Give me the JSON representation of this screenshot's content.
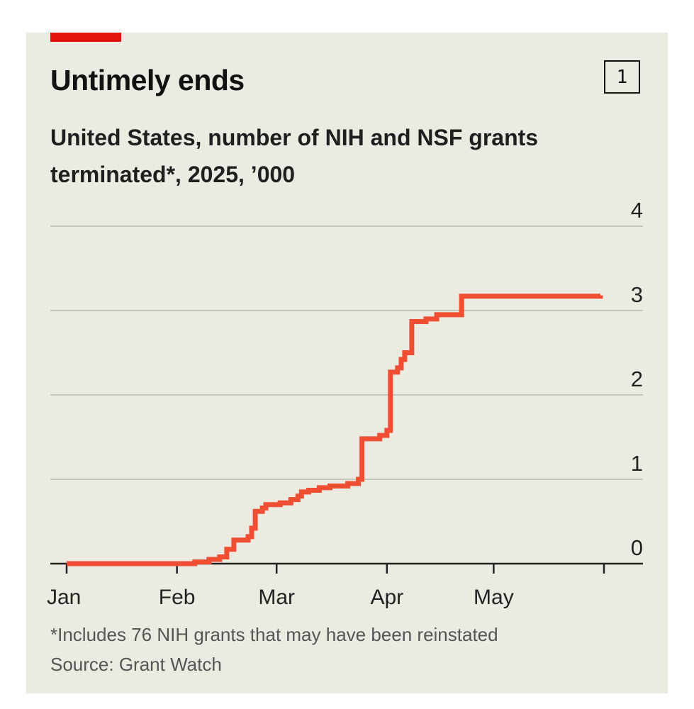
{
  "colors": {
    "accent": "#e3120b",
    "line": "#f04e33",
    "grid": "#c6c5be",
    "axis": "#222222",
    "background": "#ecebe2"
  },
  "header": {
    "title": "Untimely ends",
    "chart_number": "1",
    "subtitle": "United States, number of NIH and NSF grants terminated*, 2025, ’000"
  },
  "footer": {
    "footnote": "*Includes 76 NIH grants that may have been reinstated",
    "source": "Source: Grant Watch"
  },
  "chart_data": {
    "type": "line",
    "step": true,
    "title": "Untimely ends",
    "subtitle": "United States, number of NIH and NSF grants terminated*, 2025, ’000",
    "xlabel": "",
    "ylabel": "",
    "x_tick_labels": [
      "Jan",
      "Feb",
      "Mar",
      "Apr",
      "May"
    ],
    "x_tick_dates": [
      "2025-01-01",
      "2025-02-01",
      "2025-03-01",
      "2025-04-01",
      "2025-05-01",
      "2025-06-01"
    ],
    "xlim": [
      "2025-01-01",
      "2025-06-01"
    ],
    "y_ticks": [
      0,
      1,
      2,
      3,
      4
    ],
    "y_tick_labels": [
      "0",
      "1",
      "2",
      "3",
      "4"
    ],
    "ylim": [
      0,
      4
    ],
    "grid": true,
    "y_axis_position": "right",
    "series": [
      {
        "values": [
          [
            "2025-01-01",
            0
          ],
          [
            "2025-01-30",
            0
          ],
          [
            "2025-02-06",
            0.02
          ],
          [
            "2025-02-10",
            0.05
          ],
          [
            "2025-02-13",
            0.08
          ],
          [
            "2025-02-15",
            0.17
          ],
          [
            "2025-02-17",
            0.28
          ],
          [
            "2025-02-21",
            0.32
          ],
          [
            "2025-02-22",
            0.42
          ],
          [
            "2025-02-23",
            0.62
          ],
          [
            "2025-02-25",
            0.66
          ],
          [
            "2025-02-26",
            0.7
          ],
          [
            "2025-03-02",
            0.72
          ],
          [
            "2025-03-05",
            0.76
          ],
          [
            "2025-03-07",
            0.8
          ],
          [
            "2025-03-08",
            0.85
          ],
          [
            "2025-03-10",
            0.87
          ],
          [
            "2025-03-13",
            0.9
          ],
          [
            "2025-03-16",
            0.92
          ],
          [
            "2025-03-21",
            0.95
          ],
          [
            "2025-03-24",
            1.0
          ],
          [
            "2025-03-25",
            1.48
          ],
          [
            "2025-03-30",
            1.52
          ],
          [
            "2025-04-01",
            1.58
          ],
          [
            "2025-04-02",
            2.27
          ],
          [
            "2025-04-04",
            2.32
          ],
          [
            "2025-04-05",
            2.42
          ],
          [
            "2025-04-06",
            2.5
          ],
          [
            "2025-04-08",
            2.87
          ],
          [
            "2025-04-12",
            2.9
          ],
          [
            "2025-04-15",
            2.95
          ],
          [
            "2025-04-22",
            3.17
          ],
          [
            "2025-05-31",
            3.18
          ]
        ]
      }
    ]
  }
}
